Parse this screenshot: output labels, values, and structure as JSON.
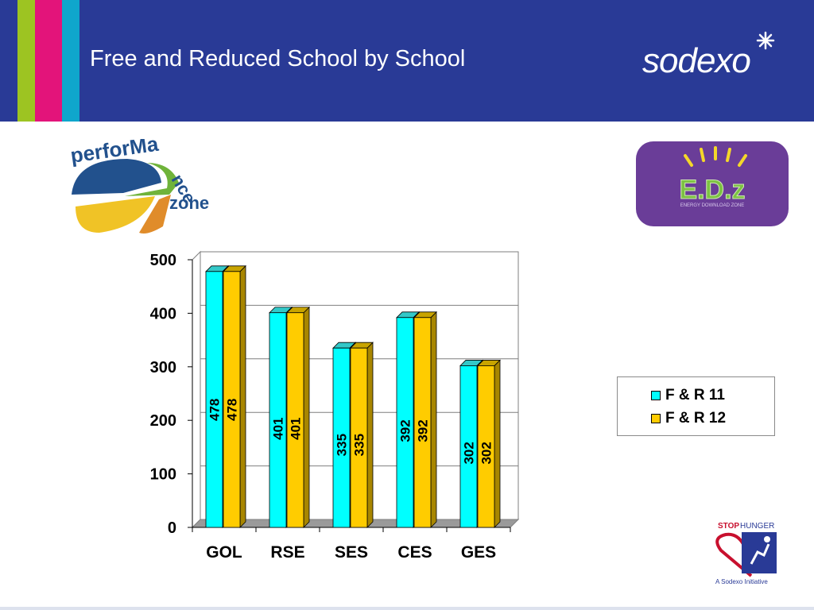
{
  "slide": {
    "title": "Free and Reduced School by School",
    "brand": "sodexo",
    "logo_performance_zone": "performance zone",
    "logo_edz": "E.D.z",
    "logo_edz_subtitle": "ENERGY DOWNLOAD ZONE",
    "stop_hunger": {
      "line1": "STOP",
      "line2": "HUNGER",
      "tagline": "A Sodexo Initiative"
    }
  },
  "colors": {
    "header_bg": "#293a96",
    "stripe_green": "#9dc422",
    "stripe_magenta": "#e3147a",
    "stripe_cyan": "#0fa6cc",
    "series1": "#00ffff",
    "series2": "#ffcc00",
    "edz_bg": "#6a3d98"
  },
  "chart_data": {
    "type": "bar",
    "categories": [
      "GOL",
      "RSE",
      "SES",
      "CES",
      "GES"
    ],
    "series": [
      {
        "name": "F & R 11",
        "values": [
          478,
          401,
          335,
          392,
          302
        ]
      },
      {
        "name": "F & R 12",
        "values": [
          478,
          401,
          335,
          392,
          302
        ]
      }
    ],
    "ylim": [
      0,
      500
    ],
    "yticks": [
      0,
      100,
      200,
      300,
      400,
      500
    ],
    "grid": true,
    "legend_position": "right",
    "style": "3d"
  }
}
